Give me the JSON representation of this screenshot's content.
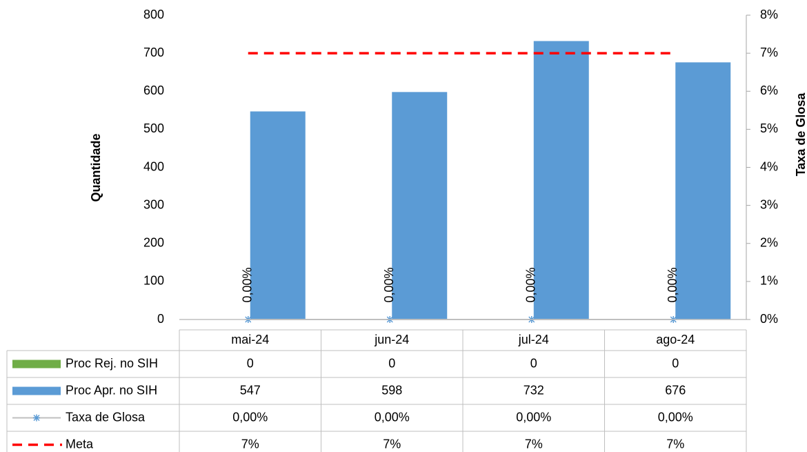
{
  "chart_data": {
    "type": "bar",
    "y_label": "Quantidade",
    "y2_label": "Taxa de Glosa",
    "categories": [
      "mai-24",
      "jun-24",
      "jul-24",
      "ago-24"
    ],
    "series": [
      {
        "name": "Proc Rej. no SIH",
        "color": "#70ad47",
        "kind": "bar",
        "values": [
          0,
          0,
          0,
          0
        ]
      },
      {
        "name": "Proc Apr. no SIH",
        "color": "#5b9bd5",
        "kind": "bar",
        "values": [
          547,
          598,
          732,
          676
        ]
      },
      {
        "name": "Taxa de Glosa",
        "color": "#5b9bd5",
        "kind": "line",
        "axis": "y2",
        "values": [
          0,
          0,
          0,
          0
        ],
        "value_labels": [
          "0,00%",
          "0,00%",
          "0,00%",
          "0,00%"
        ]
      },
      {
        "name": "Meta",
        "color": "#ff0000",
        "kind": "dashed-line",
        "axis": "y2",
        "values": [
          7,
          7,
          7,
          7
        ],
        "value_labels": [
          "7%",
          "7%",
          "7%",
          "7%"
        ]
      }
    ],
    "ylim": [
      0,
      800
    ],
    "yticks": [
      0,
      100,
      200,
      300,
      400,
      500,
      600,
      700,
      800
    ],
    "y2lim": [
      0,
      8
    ],
    "y2ticks": [
      {
        "value": 0,
        "label": "0%"
      },
      {
        "value": 1,
        "label": "1%"
      },
      {
        "value": 2,
        "label": "2%"
      },
      {
        "value": 3,
        "label": "3%"
      },
      {
        "value": 4,
        "label": "4%"
      },
      {
        "value": 5,
        "label": "5%"
      },
      {
        "value": 6,
        "label": "6%"
      },
      {
        "value": 7,
        "label": "7%"
      },
      {
        "value": 8,
        "label": "8%"
      }
    ],
    "grid": false,
    "data_table": true
  }
}
